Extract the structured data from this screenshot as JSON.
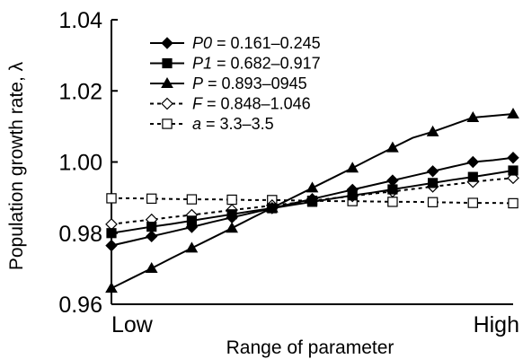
{
  "chart_data": {
    "type": "line",
    "xlabel": "Range of parameter",
    "ylabel": "Population growth rate, λ",
    "x_tick_labels": [
      "Low",
      "High"
    ],
    "ylim": [
      0.96,
      1.04
    ],
    "yticks": [
      "0.96",
      "0.98",
      "1.00",
      "1.02",
      "1.04"
    ],
    "grid": false,
    "legend_position": "top-left",
    "x": [
      0,
      1,
      2,
      3,
      4,
      5,
      6,
      7,
      8,
      9,
      10,
      11,
      12,
      13,
      14,
      15,
      16,
      17,
      18,
      19,
      20
    ],
    "series": [
      {
        "name": "P0 = 0.161–0.245",
        "legend_var": "P0",
        "legend_rest": " = 0.161–0.245",
        "marker": "diamond-filled",
        "dashed": false,
        "color": "#000000",
        "values": [
          0.9765,
          0.9778,
          0.9791,
          0.9804,
          0.9817,
          0.9831,
          0.9844,
          0.9857,
          0.987,
          0.9883,
          0.9896,
          0.9909,
          0.9922,
          0.9935,
          0.9948,
          0.9961,
          0.9974,
          0.9987,
          1.0,
          1.0005,
          1.0012
        ]
      },
      {
        "name": "P1 = 0.682–0.917",
        "legend_var": "P1",
        "legend_rest": " = 0.682–0.917",
        "marker": "square-filled",
        "dashed": false,
        "color": "#000000",
        "values": [
          0.98,
          0.9809,
          0.9818,
          0.9826,
          0.9835,
          0.9844,
          0.9853,
          0.9862,
          0.987,
          0.9879,
          0.9888,
          0.9897,
          0.9906,
          0.9914,
          0.9923,
          0.9932,
          0.9941,
          0.995,
          0.9958,
          0.9967,
          0.9976
        ]
      },
      {
        "name": "P = 0.893–0945",
        "legend_var": "P",
        "legend_rest": " = 0.893–0945",
        "marker": "triangle-filled",
        "dashed": false,
        "color": "#000000",
        "values": [
          0.9645,
          0.9673,
          0.9701,
          0.973,
          0.9758,
          0.9786,
          0.9814,
          0.9843,
          0.9871,
          0.9899,
          0.9927,
          0.9955,
          0.9983,
          1.0012,
          1.004,
          1.0068,
          1.0085,
          1.0105,
          1.0125,
          1.013,
          1.0135
        ]
      },
      {
        "name": "F = 0.848–1.046",
        "legend_var": "F",
        "legend_rest": " = 0.848–1.046",
        "marker": "diamond-open",
        "dashed": true,
        "color": "#000000",
        "values": [
          0.9825,
          0.9832,
          0.9838,
          0.9845,
          0.9851,
          0.9858,
          0.9865,
          0.9871,
          0.9878,
          0.9884,
          0.9891,
          0.9898,
          0.9904,
          0.9911,
          0.9917,
          0.9924,
          0.9931,
          0.9937,
          0.9944,
          0.995,
          0.9955
        ]
      },
      {
        "name": "a = 3.3–3.5",
        "legend_var": "a",
        "legend_rest": " = 3.3–3.5",
        "marker": "square-open",
        "dashed": true,
        "color": "#000000",
        "values": [
          0.9898,
          0.9898,
          0.9897,
          0.9896,
          0.9895,
          0.9895,
          0.9894,
          0.9893,
          0.9893,
          0.9892,
          0.9891,
          0.989,
          0.989,
          0.9889,
          0.9888,
          0.9888,
          0.9887,
          0.9886,
          0.9885,
          0.9885,
          0.9884
        ]
      }
    ],
    "marker_indices": [
      0,
      2,
      4,
      6,
      8,
      10,
      12,
      14,
      16,
      18,
      20
    ]
  }
}
